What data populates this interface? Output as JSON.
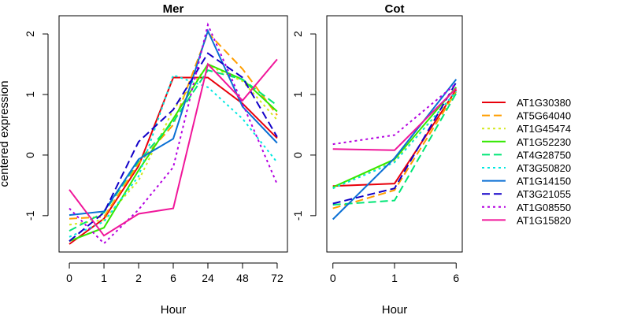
{
  "chart_data": [
    {
      "type": "line",
      "title": "Mer",
      "xlabel": "Hour",
      "ylabel": "centered expression",
      "x": [
        "0",
        "1",
        "2",
        "6",
        "24",
        "48",
        "72"
      ],
      "ylim": [
        -1.6,
        2.3
      ],
      "yticks": [
        -1,
        0,
        1,
        2
      ],
      "grid": false,
      "series": [
        {
          "name": "AT1G30380",
          "values": [
            -1.47,
            -1.05,
            -0.18,
            1.28,
            1.28,
            0.85,
            0.28
          ]
        },
        {
          "name": "AT5G64040",
          "values": [
            -1.05,
            -1.02,
            -0.14,
            0.5,
            2.02,
            1.42,
            0.66
          ]
        },
        {
          "name": "AT1G45474",
          "values": [
            -1.15,
            -1.07,
            -0.42,
            0.75,
            1.48,
            1.22,
            0.58
          ]
        },
        {
          "name": "AT1G52230",
          "values": [
            -1.42,
            -1.2,
            -0.25,
            0.6,
            1.5,
            1.25,
            0.72
          ]
        },
        {
          "name": "AT4G28750",
          "values": [
            -1.25,
            -0.95,
            -0.1,
            0.55,
            1.4,
            1.25,
            0.82
          ]
        },
        {
          "name": "AT3G50820",
          "values": [
            -1.35,
            -1.1,
            -0.35,
            1.32,
            1.12,
            0.6,
            -0.12
          ]
        },
        {
          "name": "AT1G14150",
          "values": [
            -0.99,
            -0.93,
            -0.07,
            0.27,
            2.05,
            0.8,
            0.2
          ]
        },
        {
          "name": "AT3G21055",
          "values": [
            -1.42,
            -0.95,
            0.22,
            0.75,
            1.68,
            1.28,
            0.3
          ]
        },
        {
          "name": "AT1G08550",
          "values": [
            -0.88,
            -1.46,
            -0.9,
            -0.2,
            2.15,
            0.85,
            -0.48
          ]
        },
        {
          "name": "AT1G15820",
          "values": [
            -0.57,
            -1.33,
            -0.97,
            -0.88,
            1.5,
            0.9,
            1.58
          ]
        }
      ]
    },
    {
      "type": "line",
      "title": "Cot",
      "xlabel": "Hour",
      "x": [
        "0",
        "1",
        "6"
      ],
      "ylim": [
        -1.6,
        2.3
      ],
      "yticks": [
        -1,
        0,
        1,
        2
      ],
      "grid": false,
      "series": [
        {
          "name": "AT1G30380",
          "values": [
            -0.51,
            -0.47,
            1.08
          ]
        },
        {
          "name": "AT5G64040",
          "values": [
            -0.88,
            -0.58,
            1.05
          ]
        },
        {
          "name": "AT1G45474",
          "values": [
            -0.55,
            -0.1,
            1.02
          ]
        },
        {
          "name": "AT1G52230",
          "values": [
            -0.53,
            -0.07,
            1.12
          ]
        },
        {
          "name": "AT4G28750",
          "values": [
            -0.82,
            -0.75,
            1.02
          ]
        },
        {
          "name": "AT3G50820",
          "values": [
            -0.55,
            -0.12,
            1.05
          ]
        },
        {
          "name": "AT1G14150",
          "values": [
            -1.06,
            -0.05,
            1.25
          ]
        },
        {
          "name": "AT3G21055",
          "values": [
            -0.8,
            -0.55,
            1.2
          ]
        },
        {
          "name": "AT1G08550",
          "values": [
            0.18,
            0.33,
            1.18
          ]
        },
        {
          "name": "AT1G15820",
          "values": [
            0.1,
            0.08,
            1.1
          ]
        }
      ]
    }
  ],
  "legend": {
    "placement": "right",
    "entries": [
      {
        "label": "AT1G30380",
        "color": "#e8000b",
        "dash": "solid"
      },
      {
        "label": "AT5G64040",
        "color": "#ff9e00",
        "dash": "dashed"
      },
      {
        "label": "AT1G45474",
        "color": "#d2e81b",
        "dash": "dotted"
      },
      {
        "label": "AT1G52230",
        "color": "#33e800",
        "dash": "solid"
      },
      {
        "label": "AT4G28750",
        "color": "#00e676",
        "dash": "dashed"
      },
      {
        "label": "AT3G50820",
        "color": "#00e8e0",
        "dash": "dotted"
      },
      {
        "label": "AT1G14150",
        "color": "#0a6fd4",
        "dash": "solid"
      },
      {
        "label": "AT3G21055",
        "color": "#1200c8",
        "dash": "dashed"
      },
      {
        "label": "AT1G08550",
        "color": "#b400e0",
        "dash": "dotted"
      },
      {
        "label": "AT1G15820",
        "color": "#f0169a",
        "dash": "solid"
      }
    ]
  }
}
